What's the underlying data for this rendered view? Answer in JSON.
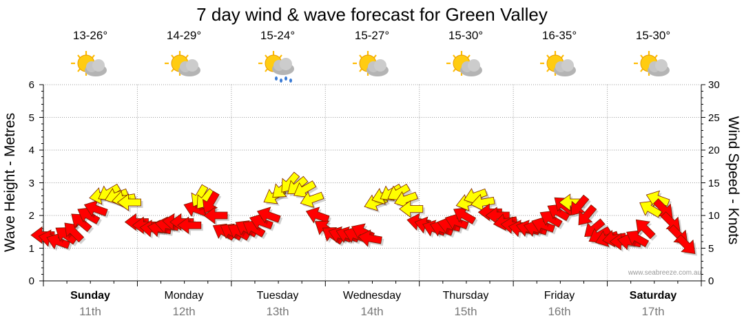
{
  "title": "7 day wind & wave forecast for Green Valley",
  "days": [
    {
      "name": "Sunday",
      "date": "11th",
      "temp": "13-26°",
      "icon": "sun-cloud-icon",
      "weekend": true
    },
    {
      "name": "Monday",
      "date": "12th",
      "temp": "14-29°",
      "icon": "sun-cloud-icon",
      "weekend": false
    },
    {
      "name": "Tuesday",
      "date": "13th",
      "temp": "15-24°",
      "icon": "sun-cloud-rain-icon",
      "weekend": false
    },
    {
      "name": "Wednesday",
      "date": "14th",
      "temp": "15-27°",
      "icon": "sun-cloud-icon",
      "weekend": false
    },
    {
      "name": "Thursday",
      "date": "15th",
      "temp": "15-30°",
      "icon": "sun-cloud-icon",
      "weekend": false
    },
    {
      "name": "Friday",
      "date": "16th",
      "temp": "16-35°",
      "icon": "sun-cloud-icon",
      "weekend": false
    },
    {
      "name": "Saturday",
      "date": "17th",
      "temp": "15-30°",
      "icon": "sun-cloud-icon",
      "weekend": true
    }
  ],
  "watermark": "www.seabreeze.com.au",
  "colors": {
    "arrow_strong": "#ff0000",
    "arrow_light": "#ffff00",
    "arrow_stroke": "#7a1a00",
    "grid": "#9a9a9a",
    "axis": "#000000"
  },
  "chart_data": {
    "type": "line",
    "title": "7 day wind & wave forecast for Green Valley",
    "ylabel": "Wave Height - Metres",
    "y2label": "Wind Speed - Knots",
    "ylim": [
      0,
      6
    ],
    "y2lim": [
      0,
      30
    ],
    "yticks": [
      "0",
      "1",
      "2",
      "3",
      "4",
      "5",
      "6"
    ],
    "y2ticks": [
      "0",
      "5",
      "10",
      "15",
      "20",
      "25",
      "30"
    ],
    "grid": true,
    "x_unit": "days from Sunday 00:00",
    "series": [
      {
        "kind": "wind-arrows",
        "points": [
          {
            "x": 0.0,
            "knots": 7.0,
            "dir": 180,
            "c": "red"
          },
          {
            "x": 0.08,
            "knots": 6.5,
            "dir": 190,
            "c": "red"
          },
          {
            "x": 0.16,
            "knots": 6.0,
            "dir": 200,
            "c": "red"
          },
          {
            "x": 0.24,
            "knots": 7.0,
            "dir": 215,
            "c": "red"
          },
          {
            "x": 0.32,
            "knots": 7.5,
            "dir": 225,
            "c": "red"
          },
          {
            "x": 0.4,
            "knots": 9.0,
            "dir": 220,
            "c": "red"
          },
          {
            "x": 0.48,
            "knots": 10.0,
            "dir": 210,
            "c": "red"
          },
          {
            "x": 0.56,
            "knots": 11.0,
            "dir": 200,
            "c": "red"
          },
          {
            "x": 0.62,
            "knots": 13.0,
            "dir": 170,
            "c": "yellow"
          },
          {
            "x": 0.7,
            "knots": 13.5,
            "dir": 150,
            "c": "yellow"
          },
          {
            "x": 0.78,
            "knots": 13.0,
            "dir": 160,
            "c": "yellow"
          },
          {
            "x": 0.86,
            "knots": 12.5,
            "dir": 170,
            "c": "yellow"
          },
          {
            "x": 0.92,
            "knots": 12.0,
            "dir": 180,
            "c": "yellow"
          },
          {
            "x": 1.0,
            "knots": 9.0,
            "dir": 180,
            "c": "red"
          },
          {
            "x": 1.08,
            "knots": 8.5,
            "dir": 180,
            "c": "red"
          },
          {
            "x": 1.16,
            "knots": 8.0,
            "dir": 185,
            "c": "red"
          },
          {
            "x": 1.24,
            "knots": 8.0,
            "dir": 190,
            "c": "red"
          },
          {
            "x": 1.32,
            "knots": 8.5,
            "dir": 190,
            "c": "red"
          },
          {
            "x": 1.4,
            "knots": 9.0,
            "dir": 185,
            "c": "red"
          },
          {
            "x": 1.48,
            "knots": 9.0,
            "dir": 180,
            "c": "red"
          },
          {
            "x": 1.56,
            "knots": 8.5,
            "dir": 180,
            "c": "red"
          },
          {
            "x": 1.62,
            "knots": 11.0,
            "dir": 200,
            "c": "red"
          },
          {
            "x": 1.66,
            "knots": 13.0,
            "dir": 120,
            "c": "yellow"
          },
          {
            "x": 1.72,
            "knots": 12.5,
            "dir": 130,
            "c": "yellow"
          },
          {
            "x": 1.78,
            "knots": 12.0,
            "dir": 120,
            "c": "red"
          },
          {
            "x": 1.84,
            "knots": 10.0,
            "dir": 180,
            "c": "red"
          },
          {
            "x": 1.92,
            "knots": 7.5,
            "dir": 210,
            "c": "red"
          },
          {
            "x": 2.0,
            "knots": 7.5,
            "dir": 210,
            "c": "red"
          },
          {
            "x": 2.08,
            "knots": 7.5,
            "dir": 210,
            "c": "red"
          },
          {
            "x": 2.16,
            "knots": 8.0,
            "dir": 210,
            "c": "red"
          },
          {
            "x": 2.24,
            "knots": 8.0,
            "dir": 210,
            "c": "red"
          },
          {
            "x": 2.32,
            "knots": 9.0,
            "dir": 200,
            "c": "red"
          },
          {
            "x": 2.4,
            "knots": 10.0,
            "dir": 200,
            "c": "red"
          },
          {
            "x": 2.46,
            "knots": 13.0,
            "dir": 150,
            "c": "yellow"
          },
          {
            "x": 2.54,
            "knots": 14.0,
            "dir": 140,
            "c": "yellow"
          },
          {
            "x": 2.62,
            "knots": 15.0,
            "dir": 130,
            "c": "yellow"
          },
          {
            "x": 2.7,
            "knots": 14.5,
            "dir": 140,
            "c": "yellow"
          },
          {
            "x": 2.78,
            "knots": 14.0,
            "dir": 150,
            "c": "yellow"
          },
          {
            "x": 2.86,
            "knots": 12.5,
            "dir": 160,
            "c": "yellow"
          },
          {
            "x": 2.92,
            "knots": 10.0,
            "dir": 200,
            "c": "red"
          },
          {
            "x": 3.0,
            "knots": 8.0,
            "dir": 215,
            "c": "red"
          },
          {
            "x": 3.08,
            "knots": 7.0,
            "dir": 215,
            "c": "red"
          },
          {
            "x": 3.16,
            "knots": 7.0,
            "dir": 200,
            "c": "red"
          },
          {
            "x": 3.24,
            "knots": 7.0,
            "dir": 200,
            "c": "red"
          },
          {
            "x": 3.32,
            "knots": 7.0,
            "dir": 200,
            "c": "red"
          },
          {
            "x": 3.4,
            "knots": 7.5,
            "dir": 205,
            "c": "red"
          },
          {
            "x": 3.48,
            "knots": 6.5,
            "dir": 190,
            "c": "red"
          },
          {
            "x": 3.54,
            "knots": 12.0,
            "dir": 160,
            "c": "yellow"
          },
          {
            "x": 3.62,
            "knots": 13.0,
            "dir": 160,
            "c": "yellow"
          },
          {
            "x": 3.7,
            "knots": 13.5,
            "dir": 150,
            "c": "yellow"
          },
          {
            "x": 3.78,
            "knots": 13.5,
            "dir": 150,
            "c": "yellow"
          },
          {
            "x": 3.86,
            "knots": 12.5,
            "dir": 160,
            "c": "yellow"
          },
          {
            "x": 3.92,
            "knots": 11.0,
            "dir": 180,
            "c": "yellow"
          },
          {
            "x": 4.0,
            "knots": 9.0,
            "dir": 190,
            "c": "red"
          },
          {
            "x": 4.08,
            "knots": 8.5,
            "dir": 195,
            "c": "red"
          },
          {
            "x": 4.16,
            "knots": 8.0,
            "dir": 200,
            "c": "red"
          },
          {
            "x": 4.24,
            "knots": 8.0,
            "dir": 200,
            "c": "red"
          },
          {
            "x": 4.32,
            "knots": 8.5,
            "dir": 195,
            "c": "red"
          },
          {
            "x": 4.4,
            "knots": 9.0,
            "dir": 200,
            "c": "red"
          },
          {
            "x": 4.48,
            "knots": 10.0,
            "dir": 210,
            "c": "red"
          },
          {
            "x": 4.52,
            "knots": 12.0,
            "dir": 165,
            "c": "yellow"
          },
          {
            "x": 4.6,
            "knots": 13.0,
            "dir": 160,
            "c": "yellow"
          },
          {
            "x": 4.68,
            "knots": 12.0,
            "dir": 170,
            "c": "yellow"
          },
          {
            "x": 4.76,
            "knots": 10.5,
            "dir": 180,
            "c": "red"
          },
          {
            "x": 4.84,
            "knots": 10.0,
            "dir": 180,
            "c": "red"
          },
          {
            "x": 4.92,
            "knots": 9.0,
            "dir": 170,
            "c": "red"
          },
          {
            "x": 5.0,
            "knots": 8.5,
            "dir": 185,
            "c": "red"
          },
          {
            "x": 5.08,
            "knots": 8.0,
            "dir": 190,
            "c": "red"
          },
          {
            "x": 5.16,
            "knots": 8.0,
            "dir": 195,
            "c": "red"
          },
          {
            "x": 5.24,
            "knots": 8.0,
            "dir": 195,
            "c": "red"
          },
          {
            "x": 5.32,
            "knots": 8.5,
            "dir": 200,
            "c": "red"
          },
          {
            "x": 5.4,
            "knots": 9.5,
            "dir": 210,
            "c": "red"
          },
          {
            "x": 5.48,
            "knots": 10.5,
            "dir": 210,
            "c": "red"
          },
          {
            "x": 5.54,
            "knots": 11.5,
            "dir": 220,
            "c": "red"
          },
          {
            "x": 5.62,
            "knots": 12.0,
            "dir": 180,
            "c": "yellow"
          },
          {
            "x": 5.7,
            "knots": 11.5,
            "dir": 130,
            "c": "red"
          },
          {
            "x": 5.78,
            "knots": 10.0,
            "dir": 130,
            "c": "red"
          },
          {
            "x": 5.86,
            "knots": 8.0,
            "dir": 140,
            "c": "red"
          },
          {
            "x": 5.92,
            "knots": 7.0,
            "dir": 150,
            "c": "red"
          },
          {
            "x": 6.0,
            "knots": 6.5,
            "dir": 160,
            "c": "red"
          },
          {
            "x": 6.08,
            "knots": 6.5,
            "dir": 170,
            "c": "red"
          },
          {
            "x": 6.16,
            "knots": 6.0,
            "dir": 180,
            "c": "red"
          },
          {
            "x": 6.24,
            "knots": 6.0,
            "dir": 190,
            "c": "red"
          },
          {
            "x": 6.32,
            "knots": 6.5,
            "dir": 210,
            "c": "red"
          },
          {
            "x": 6.4,
            "knots": 8.0,
            "dir": 225,
            "c": "red"
          },
          {
            "x": 6.46,
            "knots": 11.0,
            "dir": 210,
            "c": "yellow"
          },
          {
            "x": 6.54,
            "knots": 12.5,
            "dir": 200,
            "c": "yellow"
          },
          {
            "x": 6.6,
            "knots": 11.0,
            "dir": 45,
            "c": "red"
          },
          {
            "x": 6.68,
            "knots": 9.0,
            "dir": 45,
            "c": "red"
          },
          {
            "x": 6.76,
            "knots": 7.0,
            "dir": 45,
            "c": "red"
          },
          {
            "x": 6.84,
            "knots": 5.5,
            "dir": 45,
            "c": "red"
          }
        ]
      }
    ]
  }
}
